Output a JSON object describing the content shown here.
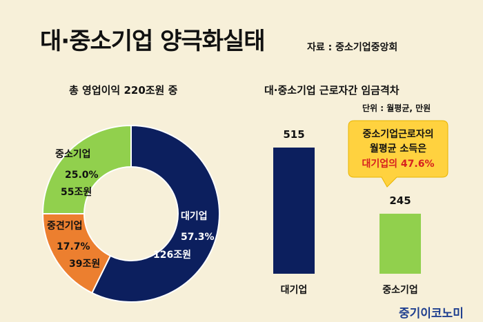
{
  "header": {
    "title": "대·중소기업 양극화실태",
    "source": "자료 : 중소기업중앙회"
  },
  "chart_data": [
    {
      "type": "pie",
      "title": "총 영업이익 220조원 중",
      "slices": [
        {
          "name": "대기업",
          "percent_label": "57.3%",
          "amount_label": "126조원",
          "value": 57.3,
          "color": "#0c1f5e",
          "label_color": "#ffffff"
        },
        {
          "name": "중견기업",
          "percent_label": "17.7%",
          "amount_label": "39조원",
          "value": 17.7,
          "color": "#ec7f2f",
          "label_color": "#111111"
        },
        {
          "name": "중소기업",
          "percent_label": "25.0%",
          "amount_label": "55조원",
          "value": 25.0,
          "color": "#91d04d",
          "label_color": "#111111"
        }
      ]
    },
    {
      "type": "bar",
      "title": "대·중소기업 근로자간 임금격차",
      "unit": "단위 : 월평균, 만원",
      "categories": [
        "대기업",
        "중소기업"
      ],
      "values": [
        515,
        245
      ],
      "value_labels": [
        "515",
        "245"
      ],
      "colors": [
        "#0c1f5e",
        "#91d04d"
      ],
      "callout": {
        "line1": "중소기업근로자의",
        "line2": "월평균 소득은",
        "line3": "대기업의 47.6%"
      }
    }
  ],
  "footer": {
    "brand": "중기이코노미"
  }
}
